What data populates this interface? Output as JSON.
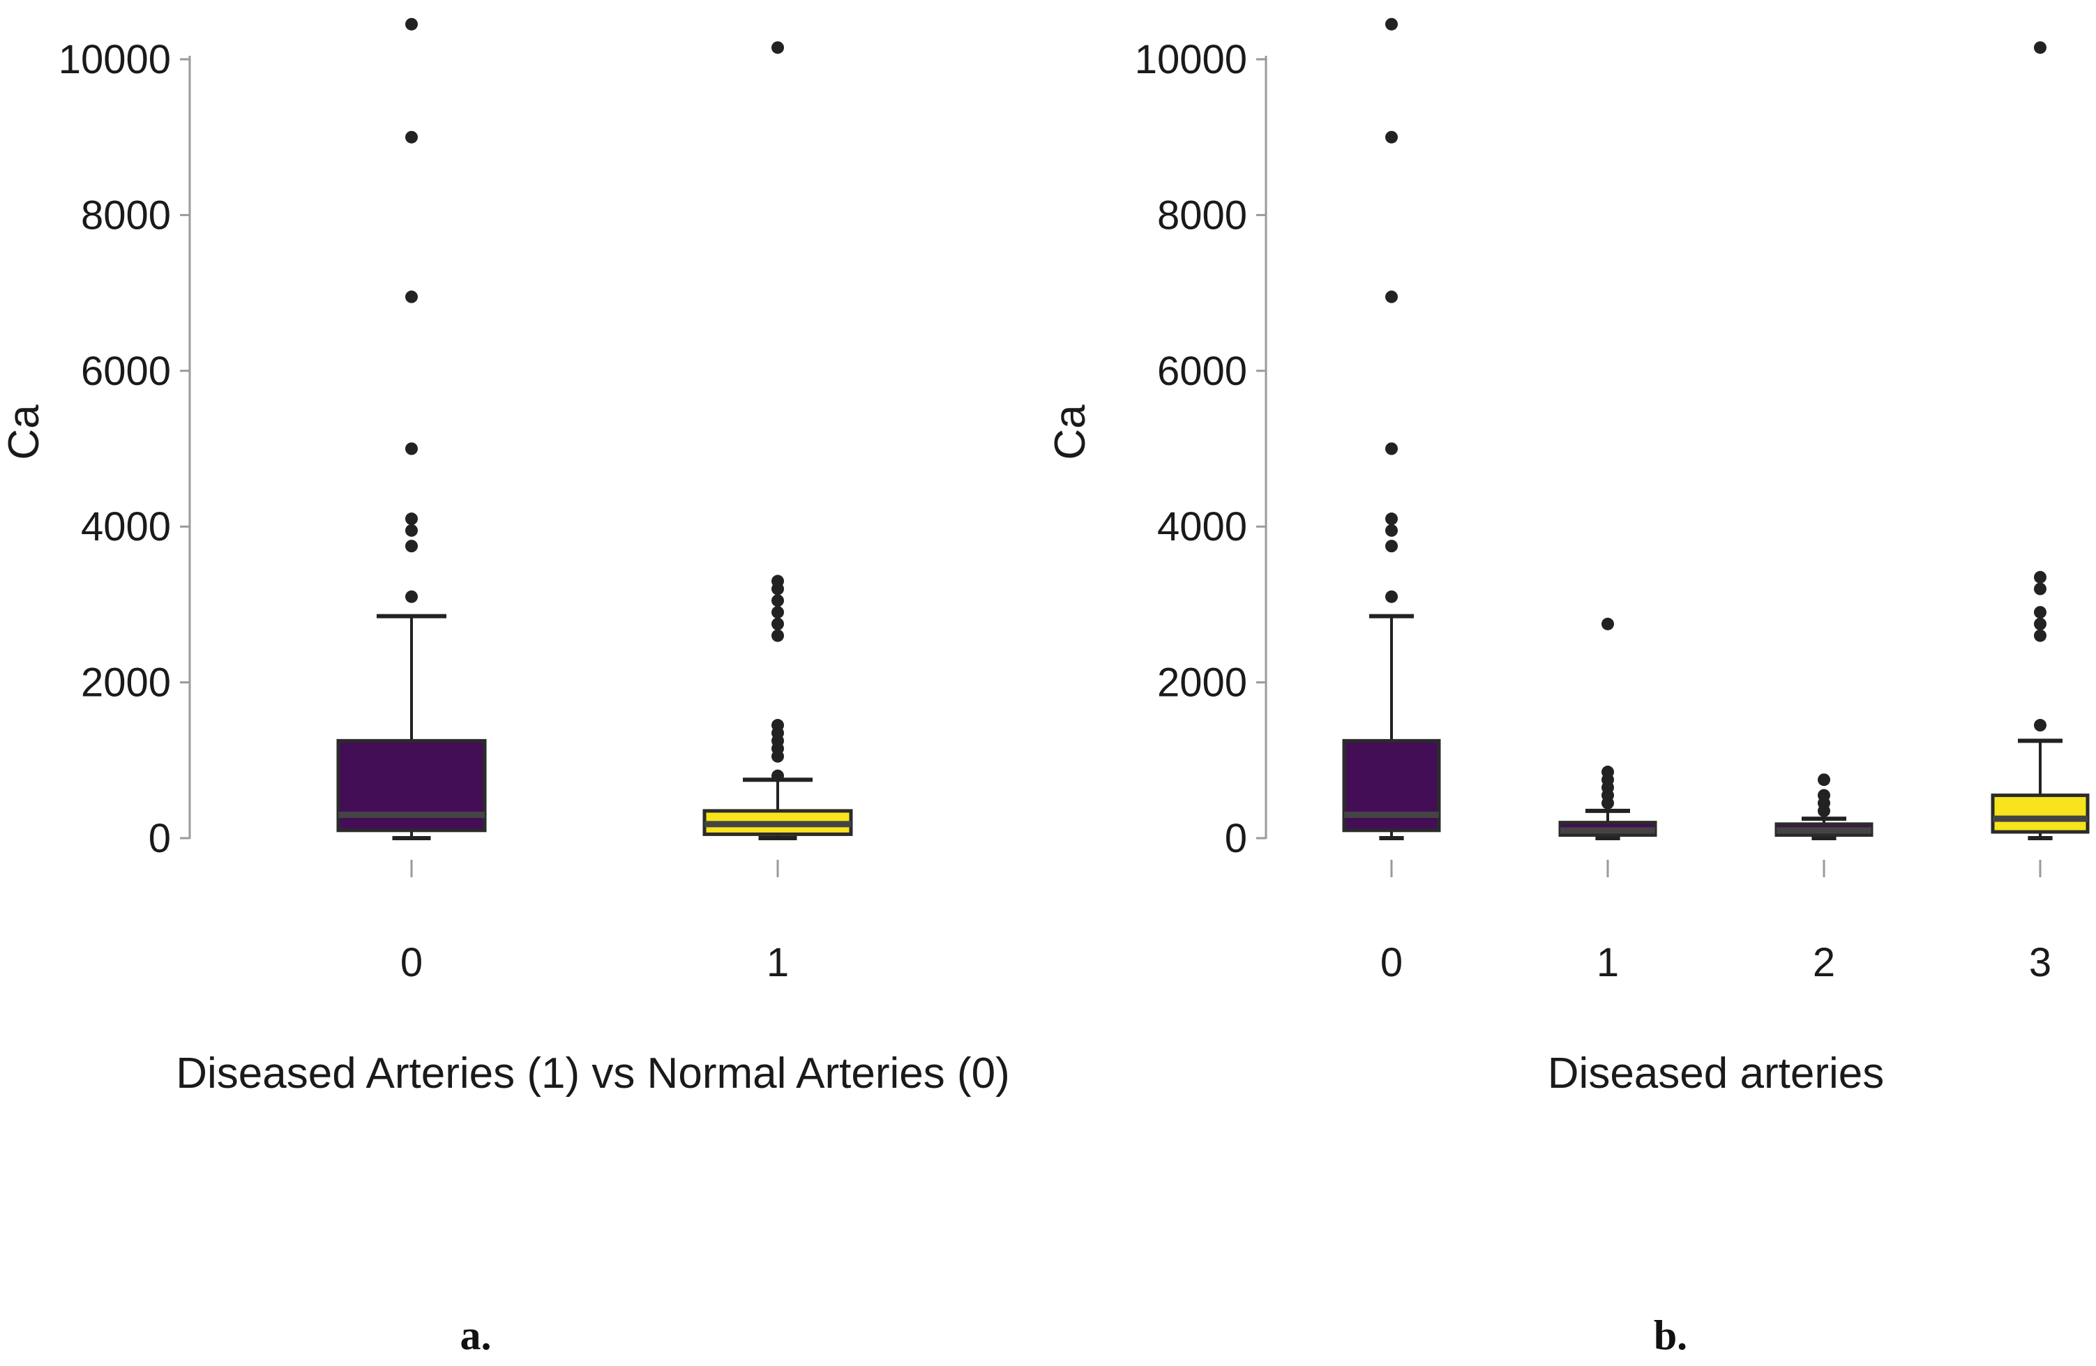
{
  "colors": {
    "group_0": "#440e56",
    "group_yellow": "#f7e41c"
  },
  "chart_data": [
    {
      "type": "boxplot",
      "panel_label": "a.",
      "xlabel": "Diseased Arteries (1) vs Normal Arteries (0)",
      "ylabel": "Ca",
      "ylim": [
        0,
        10000
      ],
      "yticks": [
        0,
        2000,
        4000,
        6000,
        8000,
        10000
      ],
      "categories": [
        "0",
        "1"
      ],
      "boxes": [
        {
          "category": "0",
          "color": "#440e56",
          "whisker_low": 0,
          "q1": 100,
          "median": 300,
          "q3": 1250,
          "whisker_high": 2850,
          "outliers": [
            3100,
            3750,
            3950,
            4100,
            5000,
            6950,
            9000,
            10450
          ]
        },
        {
          "category": "1",
          "color": "#f7e41c",
          "whisker_low": 0,
          "q1": 50,
          "median": 180,
          "q3": 350,
          "whisker_high": 750,
          "outliers": [
            800,
            1050,
            1150,
            1250,
            1350,
            1450,
            2600,
            2750,
            2900,
            3050,
            3200,
            3300,
            10150
          ]
        }
      ]
    },
    {
      "type": "boxplot",
      "panel_label": "b.",
      "xlabel": "Diseased arteries",
      "ylabel": "Ca",
      "ylim": [
        0,
        10000
      ],
      "yticks": [
        0,
        2000,
        4000,
        6000,
        8000,
        10000
      ],
      "categories": [
        "0",
        "1",
        "2",
        "3"
      ],
      "boxes": [
        {
          "category": "0",
          "color": "#440e56",
          "whisker_low": 0,
          "q1": 100,
          "median": 300,
          "q3": 1250,
          "whisker_high": 2850,
          "outliers": [
            3100,
            3750,
            3950,
            4100,
            5000,
            6950,
            9000,
            10450
          ]
        },
        {
          "category": "1",
          "color": "#440e56",
          "whisker_low": 0,
          "q1": 40,
          "median": 100,
          "q3": 200,
          "whisker_high": 350,
          "outliers": [
            450,
            550,
            650,
            750,
            850,
            2750
          ]
        },
        {
          "category": "2",
          "color": "#440e56",
          "whisker_low": 0,
          "q1": 40,
          "median": 100,
          "q3": 180,
          "whisker_high": 250,
          "outliers": [
            350,
            450,
            550,
            750
          ]
        },
        {
          "category": "3",
          "color": "#f7e41c",
          "whisker_low": 0,
          "q1": 80,
          "median": 250,
          "q3": 550,
          "whisker_high": 1250,
          "outliers": [
            1450,
            2600,
            2750,
            2900,
            3200,
            3350,
            10150
          ]
        }
      ]
    }
  ]
}
